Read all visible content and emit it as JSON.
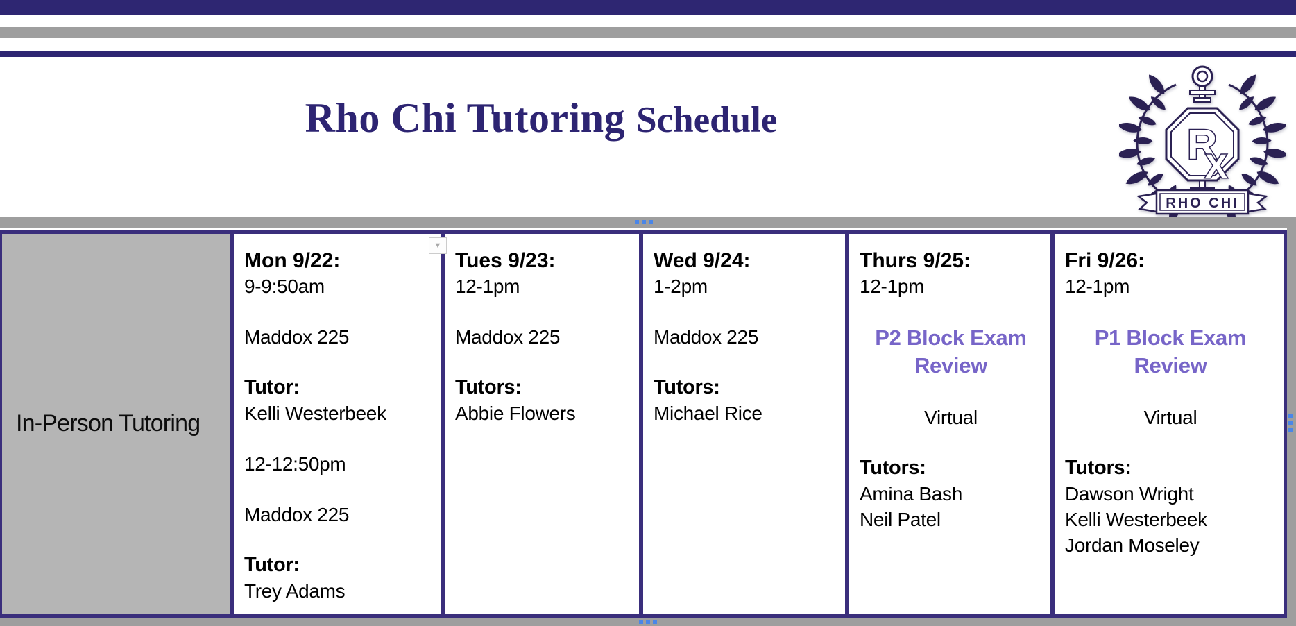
{
  "colors": {
    "accent_bar": "#2e2672",
    "table_border": "#3a2e7c",
    "title_text": "#2d2472",
    "highlight_text": "#7765c8",
    "row_header_bg": "#b5b5b5",
    "margin_strip": "#9e9e9e",
    "handle_blue": "#4a86e8",
    "logo_ink": "#2b2153"
  },
  "header": {
    "title_main": "Rho Chi Tutoring",
    "title_sub": "Schedule",
    "logo_r": "R",
    "logo_x": "X",
    "logo_banner": "RHO CHI"
  },
  "controls": {
    "cell_dropdown_icon": "▼"
  },
  "schedule": {
    "row_label": "In-Person Tutoring",
    "columns": [
      {
        "id": "mon",
        "lines": [
          {
            "text": "Mon 9/22:",
            "style": "day-header"
          },
          {
            "text": "9-9:50am",
            "style": "body"
          },
          {
            "style": "blank"
          },
          {
            "text": "Maddox 225",
            "style": "body"
          },
          {
            "style": "blank"
          },
          {
            "text": "Tutor:",
            "style": "bold"
          },
          {
            "text": "Kelli Westerbeek",
            "style": "body"
          },
          {
            "style": "blank"
          },
          {
            "text": "12-12:50pm",
            "style": "body"
          },
          {
            "style": "blank"
          },
          {
            "text": "Maddox 225",
            "style": "body"
          },
          {
            "style": "blank"
          },
          {
            "text": "Tutor:",
            "style": "bold"
          },
          {
            "text": "Trey Adams",
            "style": "body"
          }
        ]
      },
      {
        "id": "tues",
        "lines": [
          {
            "text": "Tues 9/23:",
            "style": "day-header"
          },
          {
            "text": "12-1pm",
            "style": "body"
          },
          {
            "style": "blank"
          },
          {
            "text": "Maddox 225",
            "style": "body"
          },
          {
            "style": "blank"
          },
          {
            "text": "Tutors:",
            "style": "bold"
          },
          {
            "text": "Abbie Flowers",
            "style": "body"
          }
        ]
      },
      {
        "id": "wed",
        "lines": [
          {
            "text": "Wed 9/24:",
            "style": "day-header"
          },
          {
            "text": "1-2pm",
            "style": "body"
          },
          {
            "style": "blank"
          },
          {
            "text": "Maddox 225",
            "style": "body"
          },
          {
            "style": "blank"
          },
          {
            "text": "Tutors:",
            "style": "bold"
          },
          {
            "text": "Michael Rice",
            "style": "body"
          }
        ]
      },
      {
        "id": "thurs",
        "lines": [
          {
            "text": "Thurs 9/25:",
            "style": "day-header"
          },
          {
            "text": "12-1pm",
            "style": "body"
          },
          {
            "style": "blank"
          },
          {
            "text": "P2 Block Exam Review",
            "style": "highlight"
          },
          {
            "style": "blank"
          },
          {
            "text": "Virtual",
            "style": "center"
          },
          {
            "style": "blank"
          },
          {
            "text": "Tutors:",
            "style": "bold"
          },
          {
            "text": "Amina Bash",
            "style": "body"
          },
          {
            "text": "Neil Patel",
            "style": "body"
          }
        ]
      },
      {
        "id": "fri",
        "lines": [
          {
            "text": "Fri 9/26:",
            "style": "day-header"
          },
          {
            "text": "12-1pm",
            "style": "body"
          },
          {
            "style": "blank"
          },
          {
            "text": "P1 Block Exam Review",
            "style": "highlight"
          },
          {
            "style": "blank"
          },
          {
            "text": "Virtual",
            "style": "center"
          },
          {
            "style": "blank"
          },
          {
            "text": "Tutors:",
            "style": "bold"
          },
          {
            "text": "Dawson Wright",
            "style": "body"
          },
          {
            "text": "Kelli Westerbeek",
            "style": "body"
          },
          {
            "text": "Jordan Moseley",
            "style": "body"
          }
        ]
      }
    ]
  }
}
